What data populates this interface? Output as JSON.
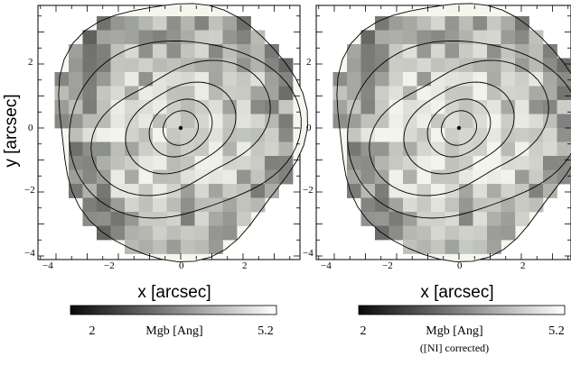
{
  "figure": {
    "panels": [
      {
        "id": "left",
        "xlabel": "x [arcsec]",
        "ylabel": "y [arcsec]",
        "xticks": [
          "−4",
          "−2",
          "0",
          "2"
        ],
        "yticks": [
          "2",
          "0",
          "−2",
          "−4"
        ],
        "colorbar": {
          "min_label": "2",
          "max_label": "5.2",
          "title": "Mgb [Ang]",
          "subtitle": ""
        }
      },
      {
        "id": "right",
        "xlabel": "x [arcsec]",
        "ylabel": "",
        "xticks": [
          "−4",
          "−2",
          "0",
          "2"
        ],
        "yticks": [
          "2",
          "0",
          "−2",
          "−4"
        ],
        "colorbar": {
          "min_label": "2",
          "max_label": "5.2",
          "title": "Mgb [Ang]",
          "subtitle": "([NI] corrected)"
        }
      }
    ],
    "axes": {
      "xlim": [
        -4.2,
        3.5
      ],
      "ylim": [
        -4.3,
        4.1
      ]
    },
    "colorbar_range": [
      2,
      5.2
    ],
    "colors": {
      "map_low": "#111111",
      "map_high": "#f7f9f1",
      "line": "#000000"
    }
  }
}
